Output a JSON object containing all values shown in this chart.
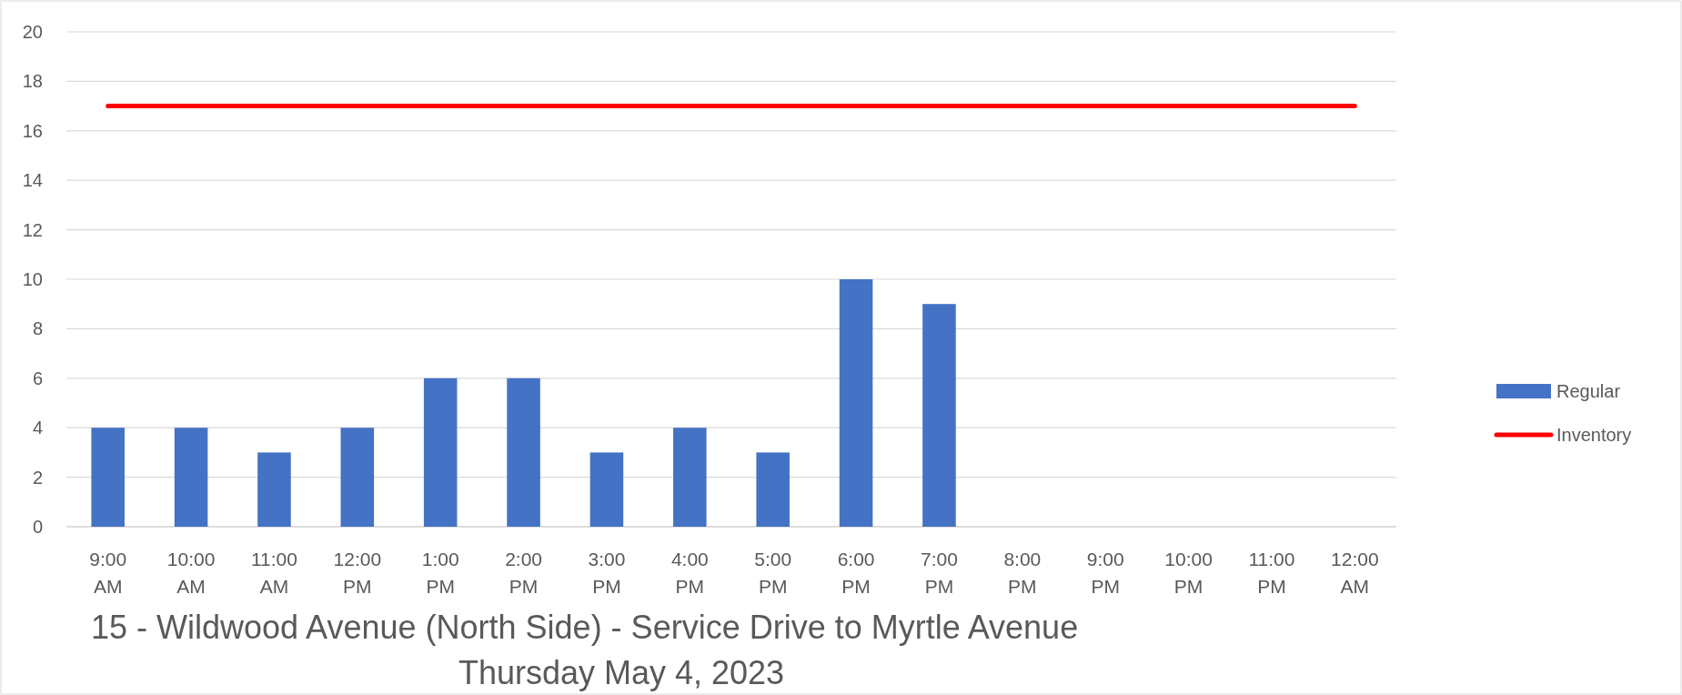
{
  "chart_data": {
    "type": "bar",
    "title": "15 - Wildwood Avenue (North Side) - Service Drive to Myrtle Avenue",
    "subtitle": "Thursday May 4, 2023",
    "categories": [
      "9:00 AM",
      "10:00 AM",
      "11:00 AM",
      "12:00 PM",
      "1:00 PM",
      "2:00 PM",
      "3:00 PM",
      "4:00 PM",
      "5:00 PM",
      "6:00 PM",
      "7:00 PM",
      "8:00 PM",
      "9:00 PM",
      "10:00 PM",
      "11:00 PM",
      "12:00 AM"
    ],
    "series": [
      {
        "name": "Regular",
        "color": "#4472c4",
        "values": [
          4,
          4,
          3,
          4,
          6,
          6,
          3,
          4,
          3,
          10,
          9,
          null,
          null,
          null,
          null,
          null
        ]
      },
      {
        "name": "Inventory",
        "type": "line",
        "color": "#ff0000",
        "values": [
          17,
          17,
          17,
          17,
          17,
          17,
          17,
          17,
          17,
          17,
          17,
          17,
          17,
          17,
          17,
          17
        ]
      }
    ],
    "ylim": [
      0,
      20
    ],
    "yticks": [
      0,
      2,
      4,
      6,
      8,
      10,
      12,
      14,
      16,
      18,
      20
    ],
    "grid": "y",
    "legend": "right",
    "line_style": "solid",
    "marker": "none"
  }
}
